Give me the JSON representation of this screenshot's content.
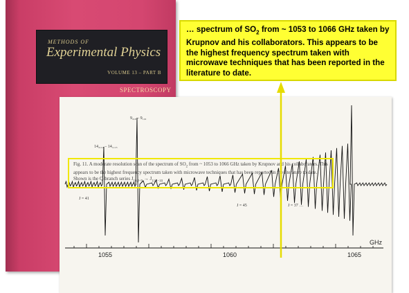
{
  "book": {
    "series_small": "METHODS OF",
    "series_main": "Experimental Physics",
    "volume": "VOLUME 13 – PART B",
    "subject": "SPECTROSCOPY"
  },
  "callout": {
    "prefix": "… spectrum of SO",
    "subscript": "2",
    "rest": " from ~ 1053 to 1066 GHz taken by Krupnov and his collaborators. This appears to be the highest frequency spectrum taken with microwave techniques that has been reported in the literature to date."
  },
  "spectrum": {
    "axis_unit": "GHz",
    "ticks": [
      "1055",
      "1060",
      "1065"
    ],
    "annotation_left": "14₂,₁₂ – 14₁,₁₃",
    "annotation_peak": "9₂,₈ – 9₁,₉",
    "series_label_1": "J = 41",
    "series_label_2": "J = 45",
    "series_label_3": "J = 37 …"
  },
  "caption": {
    "label": "Fig. 11.",
    "text_a": "A moderate resolution scan of the spectrum of SO",
    "sub_a": "2",
    "text_b": " from ~ 1053 to 1066 GHz taken by Krupnov and his collaborators. This appears to be the highest frequency spectrum taken with microwave techniques that has been reported in the literature to date. Shown is the Q-branch series J",
    "sub_b": "10,J−9",
    "text_c": " → J",
    "sub_c": "11,J−10"
  },
  "colors": {
    "book_cover": "#d44670",
    "title_panel": "#1f1f24",
    "callout_fill": "#ffff33",
    "arrow": "#e6dc00",
    "caption_border": "#f0e800"
  }
}
